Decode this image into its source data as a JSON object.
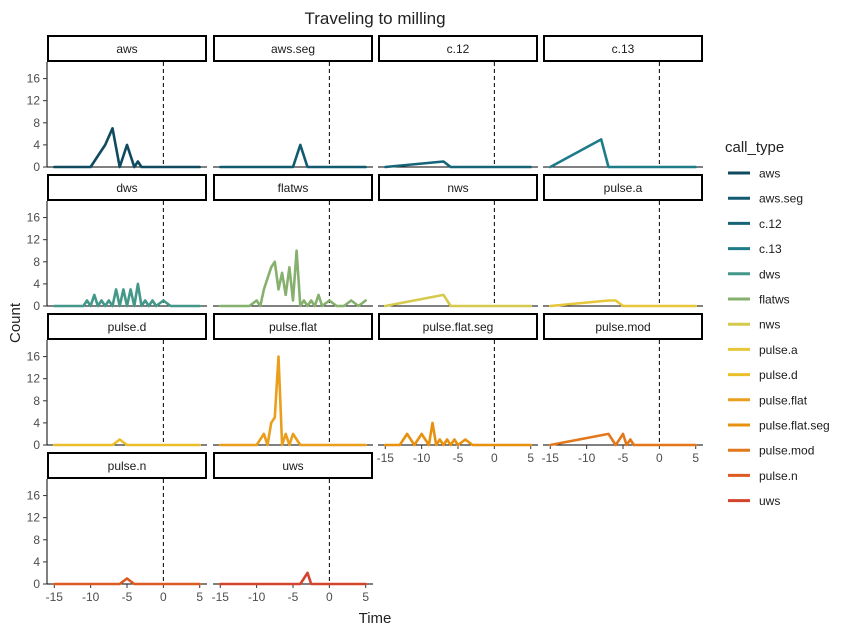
{
  "chart_data": {
    "type": "line",
    "title": "Traveling to milling",
    "xlabel": "Time",
    "ylabel": "Count",
    "xlim": [
      -16,
      6
    ],
    "ylim": [
      0,
      19
    ],
    "x_ticks": [
      -15,
      -10,
      -5,
      0,
      5
    ],
    "x_tick_labels": [
      "-15",
      "-10",
      "-5",
      "0",
      "5"
    ],
    "y_ticks": [
      0,
      4,
      8,
      12,
      16
    ],
    "y_tick_labels": [
      "0",
      "4",
      "8",
      "12",
      "16"
    ],
    "reference_line_x": 0,
    "grid": false,
    "legend": {
      "title": "call_type",
      "position": "right"
    },
    "series": [
      {
        "name": "aws",
        "color": "#0f4a5f",
        "x": [
          -15,
          -10,
          -9,
          -8,
          -7,
          -6,
          -5.5,
          -5,
          -4,
          -3.5,
          -3,
          -2,
          5
        ],
        "values": [
          0,
          0,
          2,
          4,
          7,
          0,
          2,
          4,
          0,
          1,
          0,
          0,
          0
        ]
      },
      {
        "name": "aws.seg",
        "color": "#125a70",
        "x": [
          -15,
          -5,
          -4,
          -3,
          5
        ],
        "values": [
          0,
          0,
          4,
          0,
          0
        ]
      },
      {
        "name": "c.12",
        "color": "#176478",
        "x": [
          -15,
          -7,
          -6,
          5
        ],
        "values": [
          0,
          1,
          0,
          0
        ]
      },
      {
        "name": "c.13",
        "color": "#1d7b8a",
        "x": [
          -15,
          -8,
          -7,
          5
        ],
        "values": [
          0,
          5,
          0,
          0
        ]
      },
      {
        "name": "dws",
        "color": "#44988a",
        "x": [
          -15,
          -11,
          -10.5,
          -10,
          -9.5,
          -9,
          -8.5,
          -8,
          -7.5,
          -7,
          -6.5,
          -6,
          -5.5,
          -5,
          -4.5,
          -4,
          -3.5,
          -3,
          -2.5,
          -2,
          -1.5,
          -1,
          0,
          1,
          5
        ],
        "values": [
          0,
          0,
          1,
          0,
          2,
          0,
          1,
          0,
          1,
          0,
          3,
          0,
          3,
          0,
          3,
          0,
          4,
          0,
          1,
          0,
          1,
          0,
          1,
          0,
          0
        ]
      },
      {
        "name": "flatws",
        "color": "#86b06e",
        "x": [
          -15,
          -11,
          -10,
          -9.5,
          -9,
          -8.5,
          -8,
          -7.5,
          -7,
          -6.5,
          -6,
          -5.5,
          -5,
          -4.5,
          -4,
          -3.5,
          -3,
          -2.5,
          -2,
          -1.5,
          -1,
          0,
          1,
          2,
          3,
          4,
          5
        ],
        "values": [
          0,
          0,
          1,
          0,
          3,
          5,
          7,
          8,
          3,
          6,
          2,
          7,
          1,
          10,
          0,
          1,
          0,
          1,
          0,
          2,
          0,
          1,
          0,
          0,
          1,
          0,
          1
        ]
      },
      {
        "name": "nws",
        "color": "#d5c94e",
        "x": [
          -15,
          -7,
          -6,
          5
        ],
        "values": [
          0,
          2,
          0,
          0
        ]
      },
      {
        "name": "pulse.a",
        "color": "#e7c63a",
        "x": [
          -15,
          -7,
          -6,
          -5,
          5
        ],
        "values": [
          0,
          1,
          1,
          0,
          0
        ]
      },
      {
        "name": "pulse.d",
        "color": "#ebbf2c",
        "x": [
          -15,
          -7,
          -6,
          -5,
          5
        ],
        "values": [
          0,
          0,
          1,
          0,
          0
        ]
      },
      {
        "name": "pulse.flat",
        "color": "#e99e1c",
        "x": [
          -15,
          -10,
          -9,
          -8.5,
          -8,
          -7.5,
          -7,
          -6.5,
          -6,
          -5.5,
          -5,
          -4,
          -3,
          5
        ],
        "values": [
          0,
          0,
          2,
          0,
          4,
          5,
          16,
          0,
          2,
          0,
          2,
          0,
          0,
          0
        ]
      },
      {
        "name": "pulse.flat.seg",
        "color": "#e8910f",
        "x": [
          -15,
          -13,
          -12,
          -11,
          -10,
          -9,
          -8.5,
          -8,
          -7.5,
          -7,
          -6.5,
          -6,
          -5.5,
          -5,
          -4,
          -3,
          5
        ],
        "values": [
          0,
          0,
          2,
          0,
          2,
          0,
          4,
          0,
          1,
          0,
          1,
          0,
          1,
          0,
          1,
          0,
          0
        ]
      },
      {
        "name": "pulse.mod",
        "color": "#e2771c",
        "x": [
          -15,
          -7,
          -6,
          -5.5,
          -5,
          -4.5,
          -4,
          -3.5,
          5
        ],
        "values": [
          0,
          2,
          0,
          1,
          2,
          0,
          1,
          0,
          0
        ]
      },
      {
        "name": "pulse.n",
        "color": "#dd5a22",
        "x": [
          -15,
          -6,
          -5,
          -4,
          5
        ],
        "values": [
          0,
          0,
          1,
          0,
          0
        ]
      },
      {
        "name": "uws",
        "color": "#d2442b",
        "x": [
          -15,
          -4,
          -3,
          -2.5,
          5
        ],
        "values": [
          0,
          0,
          2,
          0,
          0
        ]
      }
    ]
  }
}
